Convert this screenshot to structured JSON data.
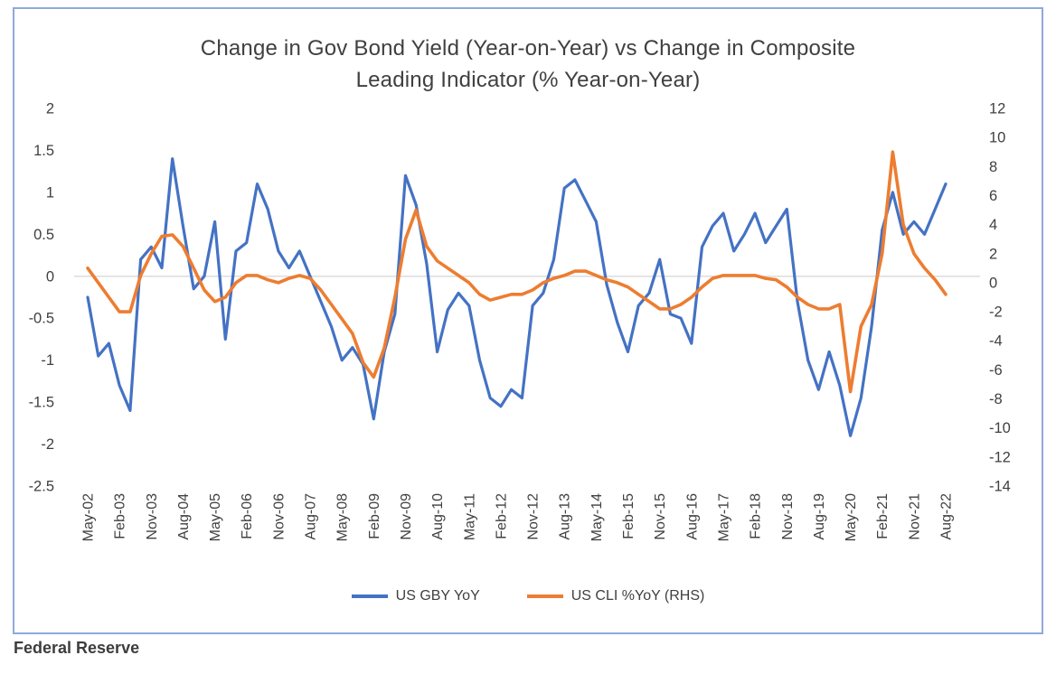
{
  "chart": {
    "title_line1": "Change in Gov Bond Yield (Year-on-Year) vs Change in Composite",
    "title_line2": "Leading Indicator (% Year-on-Year)",
    "legend": [
      "US GBY YoY",
      "US CLI %YoY (RHS)"
    ]
  },
  "source_label": "Federal Reserve",
  "colors": {
    "frame_border": "#8faadc",
    "zero_gridline": "#d9d9d9",
    "title_text": "#404040",
    "axis_text": "#404040",
    "series_blue": "#4472C4",
    "series_orange": "#ED7D31"
  },
  "chart_data": {
    "type": "line",
    "title": "Change in Gov Bond Yield (Year-on-Year) vs Change in Composite Leading Indicator (% Year-on-Year)",
    "x_frequency": "quarterly",
    "x_start": "May-02",
    "x_end": "Aug-22",
    "x_tick_labels": [
      "May-02",
      "Feb-03",
      "Nov-03",
      "Aug-04",
      "May-05",
      "Feb-06",
      "Nov-06",
      "Aug-07",
      "May-08",
      "Feb-09",
      "Nov-09",
      "Aug-10",
      "May-11",
      "Feb-12",
      "Nov-12",
      "Aug-13",
      "May-14",
      "Feb-15",
      "Nov-15",
      "Aug-16",
      "May-17",
      "Feb-18",
      "Nov-18",
      "Aug-19",
      "May-20",
      "Feb-21",
      "Nov-21",
      "Aug-22"
    ],
    "x_ticks_every_n_points": 3,
    "left_axis": {
      "ticks": [
        2,
        1.5,
        1,
        0.5,
        0,
        -0.5,
        -1,
        -1.5,
        -2,
        -2.5
      ],
      "range_min": -2.5,
      "range_max": 2
    },
    "right_axis": {
      "ticks": [
        12,
        10,
        8,
        6,
        4,
        2,
        0,
        -2,
        -4,
        -6,
        -8,
        -10,
        -12,
        -14
      ],
      "range_min": -14,
      "range_max": 12
    },
    "gridlines": "zero-only",
    "legend_position": "bottom",
    "series": [
      {
        "name": "US GBY YoY",
        "axis": "left",
        "color": "#4472C4",
        "values": [
          -0.25,
          -0.95,
          -0.8,
          -1.3,
          -1.6,
          0.2,
          0.35,
          0.1,
          1.4,
          0.6,
          -0.15,
          0.0,
          0.65,
          -0.75,
          0.3,
          0.4,
          1.1,
          0.8,
          0.3,
          0.1,
          0.3,
          0.0,
          -0.3,
          -0.6,
          -1.0,
          -0.85,
          -1.05,
          -1.7,
          -0.9,
          -0.45,
          1.2,
          0.85,
          0.15,
          -0.9,
          -0.4,
          -0.2,
          -0.35,
          -1.0,
          -1.45,
          -1.55,
          -1.35,
          -1.45,
          -0.35,
          -0.2,
          0.2,
          1.05,
          1.15,
          0.9,
          0.65,
          -0.1,
          -0.55,
          -0.9,
          -0.35,
          -0.2,
          0.2,
          -0.45,
          -0.5,
          -0.8,
          0.35,
          0.6,
          0.75,
          0.3,
          0.5,
          0.75,
          0.4,
          0.6,
          0.8,
          -0.3,
          -1.0,
          -1.35,
          -0.9,
          -1.3,
          -1.9,
          -1.45,
          -0.6,
          0.55,
          1.0,
          0.5,
          0.65,
          0.5,
          0.8,
          1.1
        ]
      },
      {
        "name": "US CLI %YoY (RHS)",
        "axis": "right",
        "color": "#ED7D31",
        "values": [
          1.0,
          0.0,
          -1.0,
          -2.0,
          -2.0,
          0.5,
          2.0,
          3.2,
          3.3,
          2.5,
          1.0,
          -0.5,
          -1.3,
          -1.0,
          0.0,
          0.5,
          0.5,
          0.2,
          0.0,
          0.3,
          0.5,
          0.3,
          -0.5,
          -1.5,
          -2.5,
          -3.5,
          -5.5,
          -6.5,
          -4.5,
          -1.0,
          3.0,
          5.0,
          2.5,
          1.5,
          1.0,
          0.5,
          0.0,
          -0.8,
          -1.2,
          -1.0,
          -0.8,
          -0.8,
          -0.5,
          0.0,
          0.3,
          0.5,
          0.8,
          0.8,
          0.5,
          0.2,
          0.0,
          -0.3,
          -0.8,
          -1.3,
          -1.8,
          -1.8,
          -1.5,
          -1.0,
          -0.3,
          0.3,
          0.5,
          0.5,
          0.5,
          0.5,
          0.3,
          0.2,
          -0.3,
          -1.0,
          -1.5,
          -1.8,
          -1.8,
          -1.5,
          -7.5,
          -3.0,
          -1.5,
          2.0,
          9.0,
          4.0,
          2.0,
          1.0,
          0.2,
          -0.8
        ]
      }
    ]
  }
}
